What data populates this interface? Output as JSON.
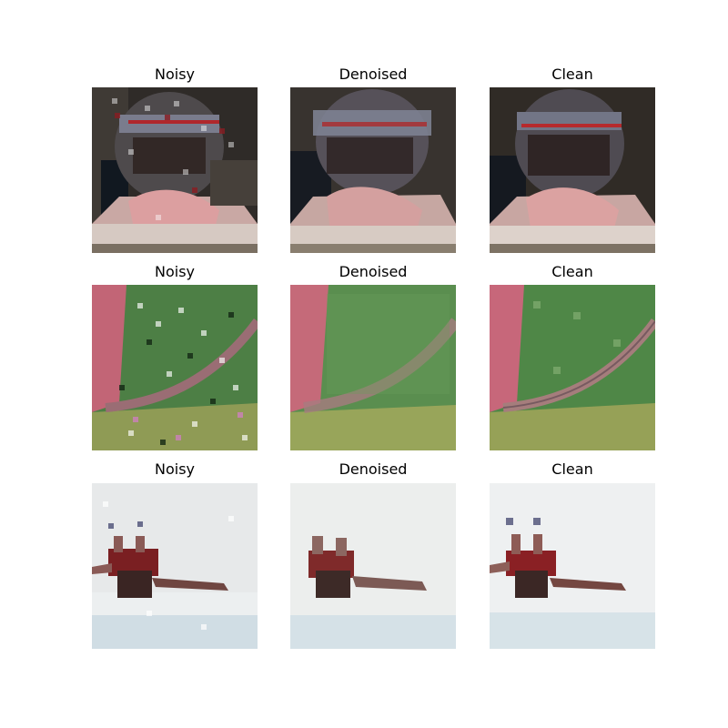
{
  "figure": {
    "rows": [
      {
        "titles": [
          "Noisy",
          "Denoised",
          "Clean"
        ]
      },
      {
        "titles": [
          "Noisy",
          "Denoised",
          "Clean"
        ]
      },
      {
        "titles": [
          "Noisy",
          "Denoised",
          "Clean"
        ]
      }
    ]
  }
}
